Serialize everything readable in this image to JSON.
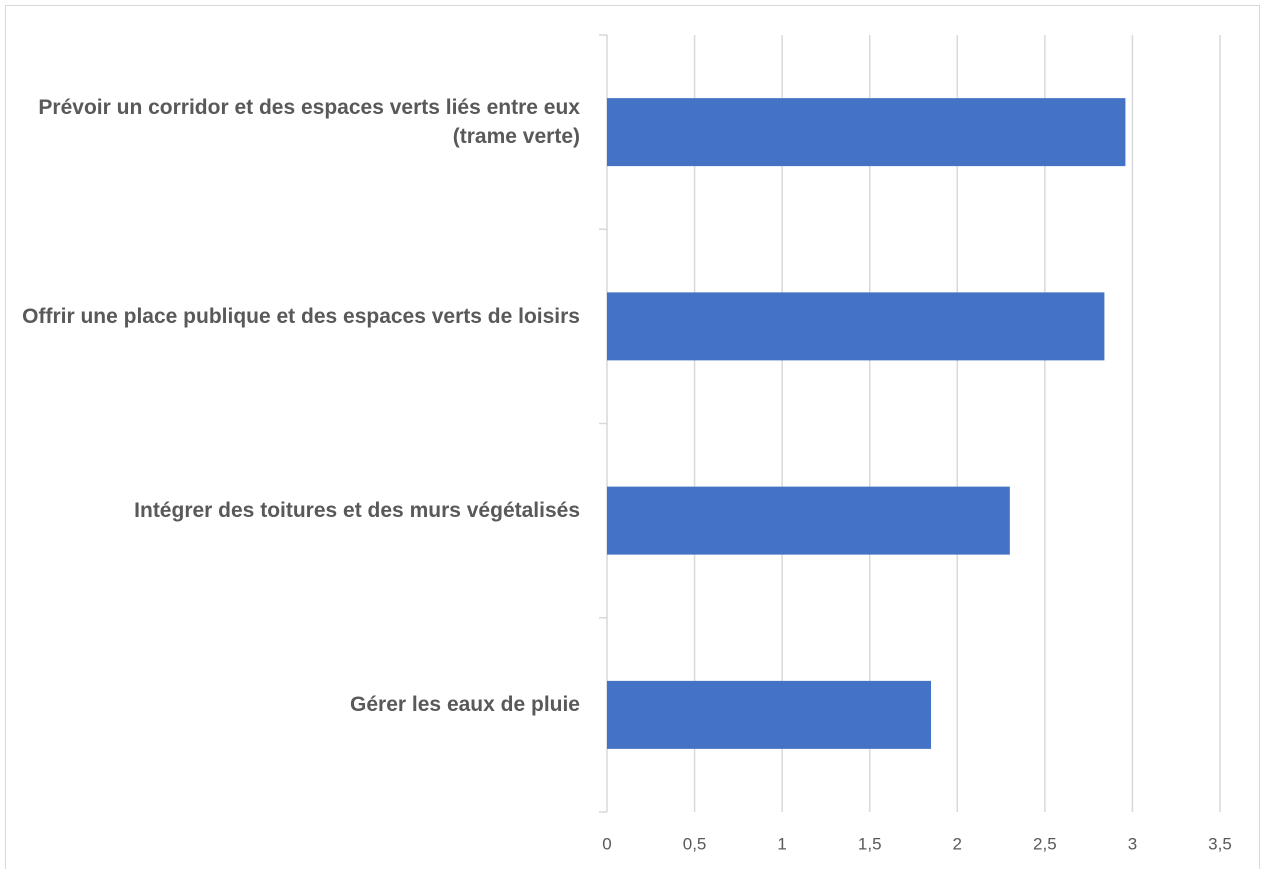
{
  "chart_data": {
    "type": "bar",
    "orientation": "horizontal",
    "categories": [
      "Prévoir un corridor et des espaces verts liés entre eux (trame verte)",
      "Offrir une place publique et des espaces verts de loisirs",
      "Intégrer des toitures et des murs végétalisés",
      "Gérer les eaux de pluie"
    ],
    "values": [
      2.96,
      2.84,
      2.3,
      1.85
    ],
    "color": "#4472c4",
    "xlim": [
      0,
      3.5
    ],
    "xticks": [
      0,
      {
        "value": 0.5,
        "label": "0,5"
      },
      1,
      {
        "value": 1.5,
        "label": "1,5"
      },
      2,
      {
        "value": 2.5,
        "label": "2,5"
      },
      3,
      {
        "value": 3.5,
        "label": "3,5"
      }
    ],
    "grid": true
  }
}
